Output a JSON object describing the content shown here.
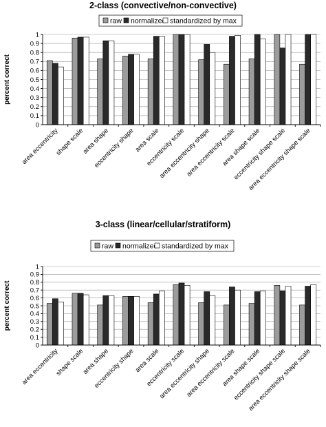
{
  "series_colors": {
    "raw": "#9c9c9c",
    "normalized": "#2a2a2a",
    "standardized by max": "#ffffff"
  },
  "chart_data": [
    {
      "type": "bar",
      "title": "2-class (convective/non-convective)",
      "ylabel": "percent correct",
      "xlabel": "",
      "ylim": [
        0,
        1
      ],
      "yticks": [
        "0",
        "0.1",
        "0.2",
        "0.3",
        "0.4",
        "0.5",
        "0.6",
        "0.7",
        "0.8",
        "0.9",
        "1"
      ],
      "grid": true,
      "legend": "top",
      "categories": [
        "area eccentricity",
        "shape scale",
        "area shape",
        "eccentricity shape",
        "area scale",
        "eccentricity scale",
        "area eccentricity shape",
        "area eccentricity scale",
        "area shape scale",
        "eccentricity shape scale",
        "area eccentricity shape scale"
      ],
      "series": [
        {
          "name": "raw",
          "values": [
            0.71,
            0.96,
            0.73,
            0.76,
            0.73,
            1.0,
            0.72,
            0.67,
            0.73,
            1.0,
            0.67
          ]
        },
        {
          "name": "normalized",
          "values": [
            0.68,
            0.97,
            0.93,
            0.78,
            0.98,
            1.0,
            0.89,
            0.98,
            1.0,
            0.85,
            1.0
          ]
        },
        {
          "name": "standardized by max",
          "values": [
            0.64,
            0.97,
            0.93,
            0.78,
            0.98,
            1.0,
            0.8,
            0.99,
            0.95,
            1.0,
            1.0
          ]
        }
      ]
    },
    {
      "type": "bar",
      "title": "3-class (linear/cellular/stratiform)",
      "ylabel": "percent correct",
      "xlabel": "",
      "ylim": [
        0,
        1
      ],
      "yticks": [
        "0",
        "0.1",
        "0.2",
        "0.3",
        "0.4",
        "0.5",
        "0.6",
        "0.7",
        "0.8",
        "0.9",
        "1"
      ],
      "grid": true,
      "legend": "top",
      "categories": [
        "area eccentricity",
        "shape scale",
        "area shape",
        "eccentricity shape",
        "area scale",
        "eccentricity scale",
        "area eccentricity shape",
        "area eccentricity scale",
        "area shape scale",
        "eccentricity shape scale",
        "area eccentricity shape scale"
      ],
      "series": [
        {
          "name": "raw",
          "values": [
            0.53,
            0.66,
            0.51,
            0.62,
            0.54,
            0.77,
            0.54,
            0.51,
            0.53,
            0.76,
            0.51
          ]
        },
        {
          "name": "normalized",
          "values": [
            0.59,
            0.66,
            0.63,
            0.62,
            0.65,
            0.79,
            0.68,
            0.74,
            0.68,
            0.69,
            0.75
          ]
        },
        {
          "name": "standardized by max",
          "values": [
            0.55,
            0.64,
            0.63,
            0.62,
            0.69,
            0.76,
            0.63,
            0.7,
            0.69,
            0.75,
            0.77
          ]
        }
      ]
    }
  ]
}
